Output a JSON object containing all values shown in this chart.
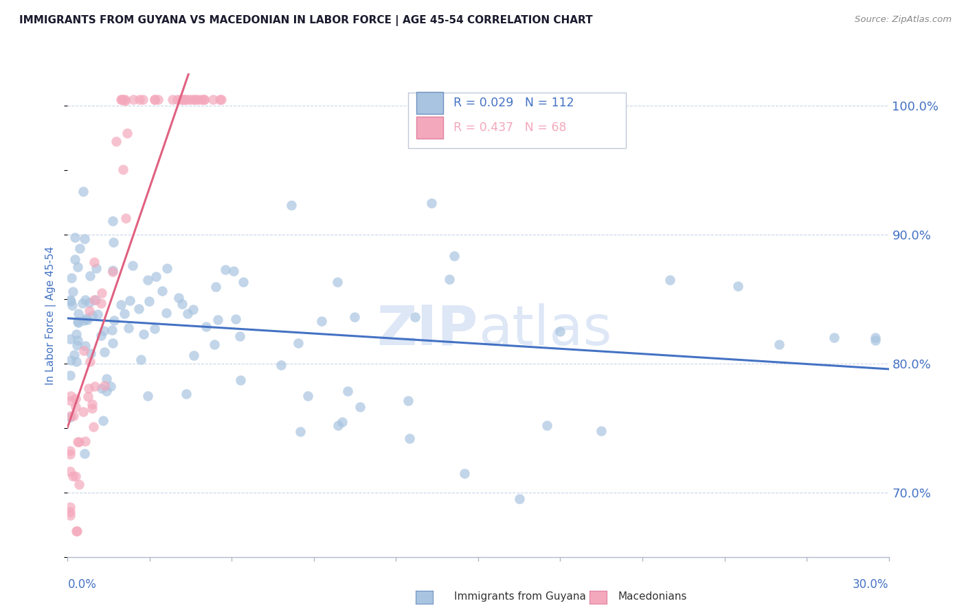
{
  "title": "IMMIGRANTS FROM GUYANA VS MACEDONIAN IN LABOR FORCE | AGE 45-54 CORRELATION CHART",
  "source": "Source: ZipAtlas.com",
  "yaxis_label": "In Labor Force | Age 45-54",
  "legend_label_guyana": "Immigrants from Guyana",
  "legend_label_macedonian": "Macedonians",
  "legend_R_guyana": "R = 0.029",
  "legend_N_guyana": "N = 112",
  "legend_R_macedonian": "R = 0.437",
  "legend_N_macedonian": "N = 68",
  "color_guyana": "#a8c4e0",
  "color_macedonian": "#f4a8bc",
  "color_guyana_line": "#4472c4",
  "color_macedonian_line": "#e06080",
  "color_axis_text": "#4472c4",
  "color_grid": "#c8d4e8",
  "color_watermark": "#c8d8f0",
  "color_border": "#c0c8d8",
  "xlim_min": 0.0,
  "xlim_max": 0.3,
  "ylim_min": 0.65,
  "ylim_max": 1.025,
  "yticks": [
    0.7,
    0.8,
    0.9,
    1.0
  ],
  "ytick_labels": [
    "70.0%",
    "80.0%",
    "90.0%",
    "100.0%"
  ],
  "guyana_seed": 42,
  "macedonian_seed": 99
}
